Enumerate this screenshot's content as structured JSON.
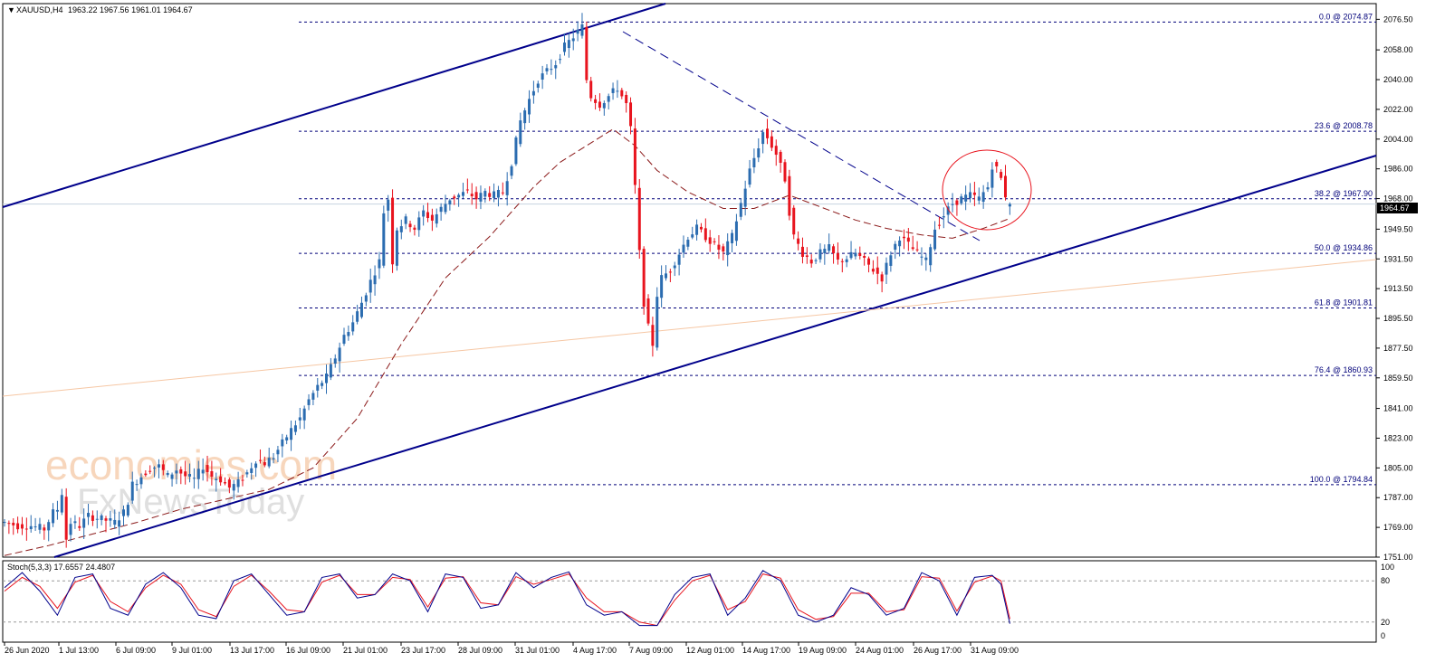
{
  "header": {
    "symbol": "XAUUSD,H4",
    "ohlc": "1963.22 1967.56 1961.01 1964.67"
  },
  "colors": {
    "bull": "#2b6cb0",
    "bear": "#e8141e",
    "ma": "#8b1a1a",
    "trendline": "#00008b",
    "fib": "#00007a",
    "stoch_main": "#00008b",
    "stoch_signal": "#e8141e",
    "circle": "#e8141e",
    "price_tag_bg": "#000000"
  },
  "watermark": {
    "line1": "economies.com",
    "line2": "FxNewsToday"
  },
  "current_price": "1964.67",
  "chart_data": {
    "type": "candlestick",
    "title": "XAUUSD,H4",
    "ylim": [
      1751,
      2086
    ],
    "y_ticks": [
      "2076.50",
      "2058.00",
      "2040.00",
      "2022.00",
      "2004.00",
      "1986.00",
      "1968.00",
      "1949.50",
      "1931.50",
      "1913.50",
      "1895.50",
      "1877.50",
      "1859.50",
      "1841.00",
      "1823.00",
      "1805.00",
      "1787.00",
      "1769.00",
      "1751.00"
    ],
    "x_ticks": [
      "26 Jun 2020",
      "1 Jul 13:00",
      "6 Jul 09:00",
      "9 Jul 01:00",
      "13 Jul 17:00",
      "16 Jul 09:00",
      "21 Jul 01:00",
      "23 Jul 17:00",
      "28 Jul 09:00",
      "31 Jul 01:00",
      "4 Aug 17:00",
      "7 Aug 09:00",
      "12 Aug 01:00",
      "14 Aug 17:00",
      "19 Aug 09:00",
      "24 Aug 01:00",
      "26 Aug 17:00",
      "31 Aug 09:00"
    ],
    "close_path": [
      [
        0,
        1772
      ],
      [
        3,
        1770
      ],
      [
        6,
        1770
      ],
      [
        9,
        1768
      ],
      [
        11,
        1778
      ],
      [
        12,
        1780
      ],
      [
        13,
        1790
      ],
      [
        14,
        1762
      ],
      [
        15,
        1772
      ],
      [
        17,
        1770
      ],
      [
        19,
        1776
      ],
      [
        22,
        1774
      ],
      [
        25,
        1772
      ],
      [
        27,
        1778
      ],
      [
        28,
        1785
      ],
      [
        29,
        1795
      ],
      [
        31,
        1800
      ],
      [
        33,
        1805
      ],
      [
        35,
        1806
      ],
      [
        37,
        1800
      ],
      [
        39,
        1804
      ],
      [
        41,
        1800
      ],
      [
        43,
        1798
      ],
      [
        45,
        1806
      ],
      [
        47,
        1800
      ],
      [
        49,
        1798
      ],
      [
        51,
        1793
      ],
      [
        53,
        1796
      ],
      [
        55,
        1802
      ],
      [
        57,
        1810
      ],
      [
        59,
        1808
      ],
      [
        61,
        1812
      ],
      [
        63,
        1820
      ],
      [
        65,
        1828
      ],
      [
        67,
        1835
      ],
      [
        69,
        1846
      ],
      [
        71,
        1854
      ],
      [
        73,
        1860
      ],
      [
        75,
        1872
      ],
      [
        77,
        1885
      ],
      [
        79,
        1893
      ],
      [
        81,
        1905
      ],
      [
        83,
        1918
      ],
      [
        85,
        1930
      ],
      [
        86,
        1960
      ],
      [
        87,
        1968
      ],
      [
        88,
        1930
      ],
      [
        89,
        1950
      ],
      [
        91,
        1955
      ],
      [
        93,
        1950
      ],
      [
        95,
        1960
      ],
      [
        97,
        1955
      ],
      [
        99,
        1962
      ],
      [
        101,
        1968
      ],
      [
        103,
        1970
      ],
      [
        105,
        1972
      ],
      [
        107,
        1968
      ],
      [
        109,
        1972
      ],
      [
        111,
        1970
      ],
      [
        113,
        1972
      ],
      [
        115,
        1990
      ],
      [
        117,
        2015
      ],
      [
        119,
        2028
      ],
      [
        121,
        2040
      ],
      [
        123,
        2045
      ],
      [
        125,
        2050
      ],
      [
        127,
        2060
      ],
      [
        129,
        2066
      ],
      [
        131,
        2072
      ],
      [
        132,
        2040
      ],
      [
        133,
        2030
      ],
      [
        135,
        2025
      ],
      [
        137,
        2030
      ],
      [
        139,
        2035
      ],
      [
        141,
        2025
      ],
      [
        142,
        2010
      ],
      [
        143,
        1975
      ],
      [
        144,
        1935
      ],
      [
        145,
        1905
      ],
      [
        146,
        1890
      ],
      [
        147,
        1880
      ],
      [
        148,
        1910
      ],
      [
        149,
        1920
      ],
      [
        151,
        1925
      ],
      [
        153,
        1935
      ],
      [
        155,
        1945
      ],
      [
        157,
        1950
      ],
      [
        159,
        1945
      ],
      [
        161,
        1940
      ],
      [
        163,
        1935
      ],
      [
        165,
        1945
      ],
      [
        167,
        1965
      ],
      [
        169,
        1985
      ],
      [
        171,
        2000
      ],
      [
        172,
        2008
      ],
      [
        173,
        2005
      ],
      [
        175,
        1995
      ],
      [
        177,
        1980
      ],
      [
        178,
        1960
      ],
      [
        179,
        1945
      ],
      [
        181,
        1935
      ],
      [
        183,
        1930
      ],
      [
        185,
        1935
      ],
      [
        187,
        1938
      ],
      [
        189,
        1930
      ],
      [
        191,
        1932
      ],
      [
        193,
        1935
      ],
      [
        195,
        1930
      ],
      [
        197,
        1925
      ],
      [
        199,
        1920
      ],
      [
        201,
        1935
      ],
      [
        203,
        1945
      ],
      [
        205,
        1940
      ],
      [
        207,
        1935
      ],
      [
        209,
        1930
      ],
      [
        211,
        1950
      ],
      [
        213,
        1958
      ],
      [
        215,
        1965
      ],
      [
        217,
        1968
      ],
      [
        219,
        1970
      ],
      [
        221,
        1968
      ],
      [
        223,
        1975
      ],
      [
        224,
        1988
      ],
      [
        225,
        1986
      ],
      [
        226,
        1980
      ],
      [
        227,
        1970
      ],
      [
        228,
        1964.67
      ]
    ],
    "series": [
      {
        "name": "",
        "type": "moving-average",
        "values": [
          [
            0,
            1752
          ],
          [
            10,
            1758
          ],
          [
            20,
            1765
          ],
          [
            30,
            1772
          ],
          [
            40,
            1780
          ],
          [
            50,
            1786
          ],
          [
            60,
            1792
          ],
          [
            70,
            1805
          ],
          [
            80,
            1835
          ],
          [
            90,
            1880
          ],
          [
            100,
            1920
          ],
          [
            110,
            1945
          ],
          [
            120,
            1975
          ],
          [
            126,
            1990
          ],
          [
            132,
            2000
          ],
          [
            138,
            2010
          ],
          [
            143,
            2000
          ],
          [
            148,
            1985
          ],
          [
            155,
            1972
          ],
          [
            163,
            1962
          ],
          [
            170,
            1962
          ],
          [
            178,
            1970
          ],
          [
            185,
            1963
          ],
          [
            193,
            1955
          ],
          [
            200,
            1950
          ],
          [
            208,
            1946
          ],
          [
            215,
            1944
          ],
          [
            222,
            1950
          ],
          [
            228,
            1956
          ]
        ]
      },
      {
        "name": "",
        "type": "fibonacci",
        "levels": [
          {
            "label": "0.0 @ 2074.87",
            "price": 2074.87
          },
          {
            "label": "23.6 @ 2008.78",
            "price": 2008.78
          },
          {
            "label": "38.2 @ 1967.90",
            "price": 1967.9
          },
          {
            "label": "50.0 @ 1934.86",
            "price": 1934.86
          },
          {
            "label": "61.8 @ 1901.81",
            "price": 1901.81
          },
          {
            "label": "76.4 @ 1860.93",
            "price": 1860.93
          },
          {
            "label": "100.0 @ 1794.84",
            "price": 1794.84
          }
        ]
      }
    ],
    "stochastic": {
      "title": "Stoch(5,3,3) 17.6557 24.4807",
      "ylim": [
        0,
        100
      ],
      "levels": [
        "100",
        "80",
        "20",
        "0"
      ],
      "main": [
        [
          0,
          70
        ],
        [
          4,
          92
        ],
        [
          8,
          65
        ],
        [
          12,
          30
        ],
        [
          16,
          85
        ],
        [
          20,
          90
        ],
        [
          24,
          40
        ],
        [
          28,
          30
        ],
        [
          32,
          75
        ],
        [
          36,
          92
        ],
        [
          40,
          70
        ],
        [
          44,
          30
        ],
        [
          48,
          25
        ],
        [
          52,
          80
        ],
        [
          56,
          90
        ],
        [
          60,
          60
        ],
        [
          64,
          30
        ],
        [
          68,
          35
        ],
        [
          72,
          85
        ],
        [
          76,
          90
        ],
        [
          80,
          55
        ],
        [
          84,
          60
        ],
        [
          88,
          90
        ],
        [
          92,
          80
        ],
        [
          96,
          35
        ],
        [
          100,
          90
        ],
        [
          104,
          85
        ],
        [
          108,
          40
        ],
        [
          112,
          45
        ],
        [
          116,
          92
        ],
        [
          120,
          70
        ],
        [
          124,
          85
        ],
        [
          128,
          93
        ],
        [
          132,
          45
        ],
        [
          136,
          30
        ],
        [
          140,
          35
        ],
        [
          144,
          15
        ],
        [
          148,
          15
        ],
        [
          152,
          60
        ],
        [
          156,
          85
        ],
        [
          160,
          90
        ],
        [
          164,
          30
        ],
        [
          168,
          55
        ],
        [
          172,
          95
        ],
        [
          176,
          80
        ],
        [
          180,
          30
        ],
        [
          184,
          20
        ],
        [
          188,
          30
        ],
        [
          192,
          70
        ],
        [
          196,
          60
        ],
        [
          200,
          30
        ],
        [
          204,
          40
        ],
        [
          208,
          92
        ],
        [
          212,
          80
        ],
        [
          216,
          30
        ],
        [
          220,
          85
        ],
        [
          224,
          88
        ],
        [
          226,
          75
        ],
        [
          228,
          17.66
        ]
      ],
      "signal": [
        [
          0,
          65
        ],
        [
          4,
          85
        ],
        [
          8,
          72
        ],
        [
          12,
          40
        ],
        [
          16,
          78
        ],
        [
          20,
          88
        ],
        [
          24,
          50
        ],
        [
          28,
          35
        ],
        [
          32,
          70
        ],
        [
          36,
          88
        ],
        [
          40,
          75
        ],
        [
          44,
          38
        ],
        [
          48,
          28
        ],
        [
          52,
          72
        ],
        [
          56,
          88
        ],
        [
          60,
          65
        ],
        [
          64,
          38
        ],
        [
          68,
          35
        ],
        [
          72,
          78
        ],
        [
          76,
          88
        ],
        [
          80,
          60
        ],
        [
          84,
          60
        ],
        [
          88,
          85
        ],
        [
          92,
          82
        ],
        [
          96,
          42
        ],
        [
          100,
          84
        ],
        [
          104,
          86
        ],
        [
          108,
          48
        ],
        [
          112,
          45
        ],
        [
          116,
          86
        ],
        [
          120,
          75
        ],
        [
          124,
          82
        ],
        [
          128,
          90
        ],
        [
          132,
          55
        ],
        [
          136,
          35
        ],
        [
          140,
          35
        ],
        [
          144,
          20
        ],
        [
          148,
          15
        ],
        [
          152,
          52
        ],
        [
          156,
          80
        ],
        [
          160,
          88
        ],
        [
          164,
          38
        ],
        [
          168,
          50
        ],
        [
          172,
          90
        ],
        [
          176,
          84
        ],
        [
          180,
          38
        ],
        [
          184,
          24
        ],
        [
          188,
          28
        ],
        [
          192,
          62
        ],
        [
          196,
          62
        ],
        [
          200,
          35
        ],
        [
          204,
          38
        ],
        [
          208,
          86
        ],
        [
          212,
          84
        ],
        [
          216,
          36
        ],
        [
          220,
          78
        ],
        [
          224,
          87
        ],
        [
          226,
          80
        ],
        [
          228,
          24.48
        ]
      ]
    }
  }
}
